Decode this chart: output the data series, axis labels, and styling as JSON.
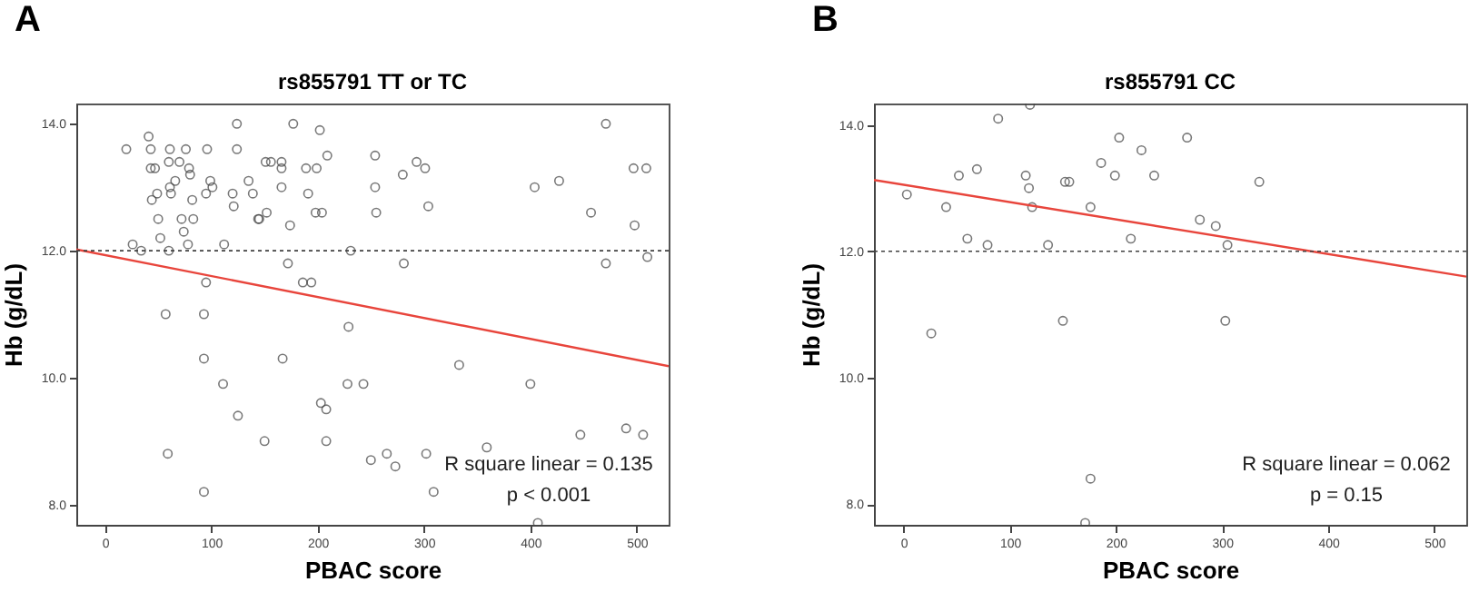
{
  "chart_data": [
    {
      "type": "scatter",
      "title": "A",
      "subtitle": "rs855791 TT or TC",
      "xlabel": "PBAC score",
      "ylabel": "Hb (g/dL)",
      "xlim": [
        -27,
        530
      ],
      "ylim": [
        7.68,
        14.32
      ],
      "xticks": [
        0,
        100,
        200,
        300,
        400,
        500
      ],
      "yticks": [
        {
          "value": 8,
          "label": "8.0"
        },
        {
          "value": 10,
          "label": "10.0"
        },
        {
          "value": 12,
          "label": "12.0"
        },
        {
          "value": 14,
          "label": "14.0"
        }
      ],
      "grid": false,
      "series": [
        {
          "type": "scatter",
          "marker": "circle",
          "color": "#404040",
          "x": [
            20,
            41,
            43,
            43,
            47,
            44,
            49,
            50,
            52,
            26,
            34,
            60,
            61,
            61,
            62,
            66,
            70,
            76,
            79,
            80,
            72,
            83,
            82,
            74,
            78,
            60,
            96,
            101,
            99,
            95,
            112,
            120,
            121,
            124,
            124,
            135,
            139,
            144,
            145,
            152,
            151,
            156,
            166,
            166,
            166,
            174,
            177,
            189,
            191,
            199,
            202,
            209,
            198,
            204,
            172,
            186,
            194,
            95,
            57,
            93,
            93,
            167,
            111,
            125,
            150,
            59,
            93,
            203,
            208,
            208,
            229,
            228,
            231,
            243,
            254,
            254,
            255,
            280,
            293,
            301,
            304,
            281,
            471,
            497,
            509,
            404,
            427,
            457,
            498,
            471,
            510,
            333,
            400,
            250,
            265,
            273,
            302,
            309,
            359,
            447,
            490,
            506,
            407
          ],
          "values": [
            13.6,
            13.8,
            13.6,
            13.3,
            13.3,
            12.8,
            12.9,
            12.5,
            12.2,
            12.1,
            12.0,
            13.4,
            13.6,
            13.0,
            12.9,
            13.1,
            13.4,
            13.6,
            13.3,
            13.2,
            12.5,
            12.5,
            12.8,
            12.3,
            12.1,
            12.0,
            13.6,
            13.0,
            13.1,
            12.9,
            12.1,
            12.9,
            12.7,
            13.6,
            14.0,
            13.1,
            12.9,
            12.5,
            12.5,
            12.6,
            13.4,
            13.4,
            13.4,
            13.3,
            13.0,
            12.4,
            14.0,
            13.3,
            12.9,
            13.3,
            13.9,
            13.5,
            12.6,
            12.6,
            11.8,
            11.5,
            11.5,
            11.5,
            11.0,
            11.0,
            10.3,
            10.3,
            9.9,
            9.4,
            9.0,
            8.8,
            8.2,
            9.6,
            9.5,
            9.0,
            10.8,
            9.9,
            12.0,
            9.9,
            13.5,
            13.0,
            12.6,
            13.2,
            13.4,
            13.3,
            12.7,
            11.8,
            14.0,
            13.3,
            13.3,
            13.0,
            13.1,
            12.6,
            12.4,
            11.8,
            11.9,
            10.2,
            9.9,
            8.7,
            8.8,
            8.6,
            8.8,
            8.2,
            8.9,
            9.1,
            9.2,
            9.1,
            7.71
          ]
        },
        {
          "type": "line",
          "color": "#e8453c",
          "x": [
            -27,
            530
          ],
          "values": [
            12.02,
            10.18
          ]
        }
      ],
      "ref_lines": [
        {
          "axis": "y",
          "value": 12,
          "line_style": "dotted",
          "color": "#404040"
        }
      ],
      "annotations": [
        "R square linear = 0.135",
        "p < 0.001"
      ]
    },
    {
      "type": "scatter",
      "title": "B",
      "subtitle": "rs855791 CC",
      "xlabel": "PBAC score",
      "ylabel": "Hb (g/dL)",
      "xlim": [
        -28,
        530
      ],
      "ylim": [
        7.67,
        14.34
      ],
      "xticks": [
        0,
        100,
        200,
        300,
        400,
        500
      ],
      "yticks": [
        {
          "value": 8,
          "label": "8.0"
        },
        {
          "value": 10,
          "label": "10.0"
        },
        {
          "value": 12,
          "label": "12.0"
        },
        {
          "value": 14,
          "label": "14.0"
        }
      ],
      "grid": false,
      "series": [
        {
          "type": "scatter",
          "marker": "circle",
          "color": "#404040",
          "x": [
            3,
            26,
            40,
            52,
            60,
            69,
            79,
            89,
            115,
            118,
            119,
            121,
            136,
            150,
            152,
            156,
            176,
            176,
            171,
            186,
            199,
            203,
            214,
            224,
            236,
            267,
            335,
            279,
            294,
            305,
            303
          ],
          "values": [
            12.9,
            10.7,
            12.7,
            13.2,
            12.2,
            13.3,
            12.1,
            14.1,
            13.2,
            13.0,
            14.32,
            12.7,
            12.1,
            10.9,
            13.1,
            13.1,
            12.7,
            8.4,
            7.7,
            13.4,
            13.2,
            13.8,
            12.2,
            13.6,
            13.2,
            13.8,
            13.1,
            12.5,
            12.4,
            12.1,
            10.9
          ]
        },
        {
          "type": "line",
          "color": "#e8453c",
          "x": [
            -28,
            530
          ],
          "values": [
            13.13,
            11.6
          ]
        }
      ],
      "ref_lines": [
        {
          "axis": "y",
          "value": 12,
          "line_style": "dotted",
          "color": "#404040"
        }
      ],
      "annotations": [
        "R square linear = 0.062",
        "p = 0.15"
      ]
    }
  ]
}
